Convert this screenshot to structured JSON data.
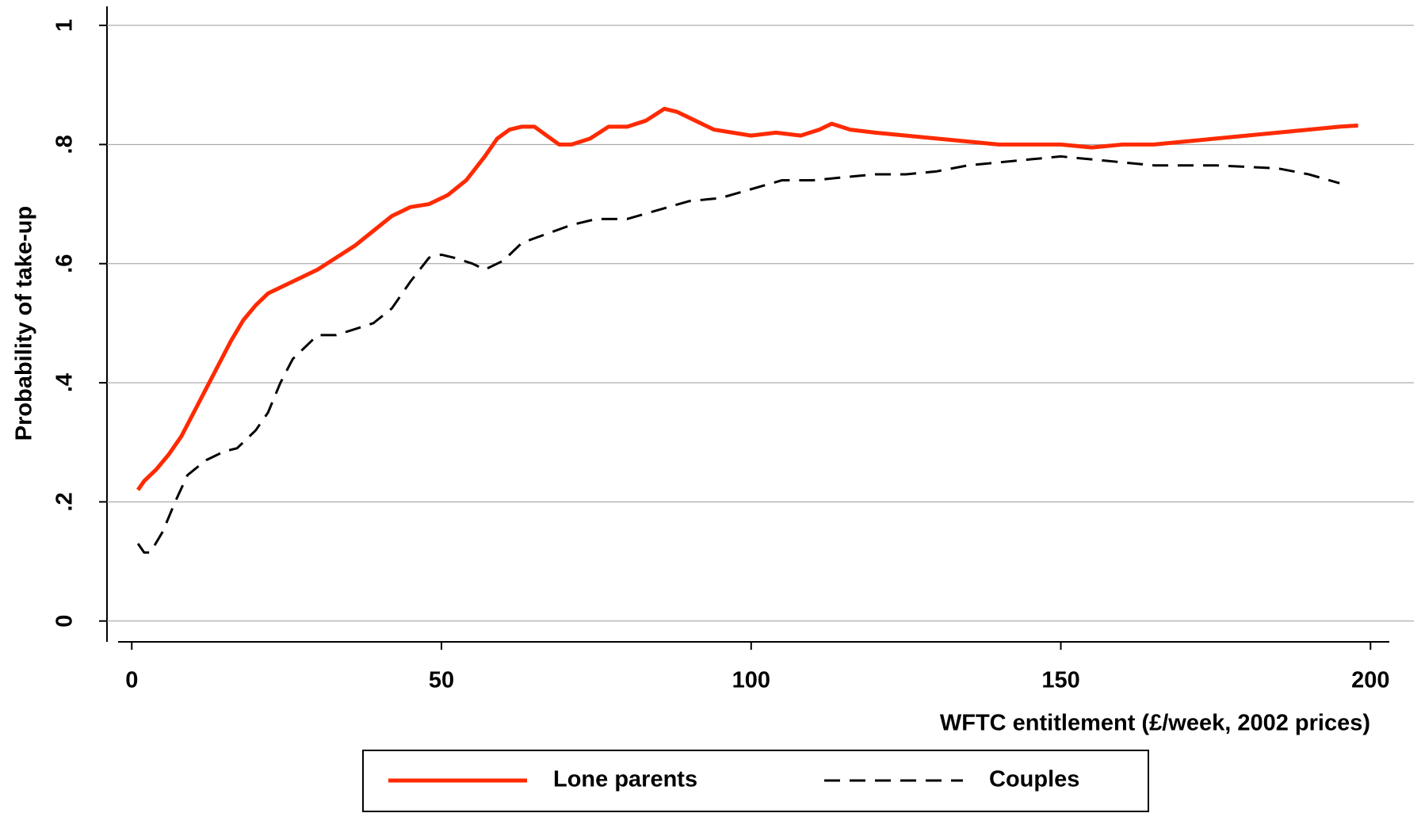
{
  "chart_data": {
    "type": "line",
    "x_label": "WFTC entitlement (£/week, 2002 prices)",
    "y_label": "Probability of take-up",
    "xlim": [
      -4,
      207
    ],
    "ylim": [
      -0.035,
      1.032
    ],
    "xticks": [
      0,
      50,
      100,
      150,
      200
    ],
    "yticks": [
      0,
      {
        "value": 0.2,
        "label": ".2"
      },
      {
        "value": 0.4,
        "label": ".4"
      },
      {
        "value": 0.6,
        "label": ".6"
      },
      {
        "value": 0.8,
        "label": ".8"
      },
      1
    ],
    "grid": true,
    "series": [
      {
        "name": "Lone parents",
        "color": "#ff2a00",
        "dash": "solid",
        "x": [
          1,
          2,
          4,
          6,
          8,
          10,
          12,
          14,
          16,
          18,
          20,
          22,
          25,
          28,
          30,
          33,
          36,
          39,
          42,
          45,
          48,
          51,
          54,
          57,
          59,
          61,
          63,
          65,
          67,
          69,
          71,
          74,
          77,
          80,
          83,
          86,
          88,
          91,
          94,
          97,
          100,
          104,
          108,
          111,
          113,
          116,
          120,
          125,
          130,
          135,
          140,
          145,
          150,
          155,
          160,
          165,
          170,
          175,
          180,
          185,
          190,
          195,
          198
        ],
        "values": [
          0.22,
          0.235,
          0.255,
          0.28,
          0.31,
          0.35,
          0.39,
          0.43,
          0.47,
          0.505,
          0.53,
          0.55,
          0.565,
          0.58,
          0.59,
          0.61,
          0.63,
          0.655,
          0.68,
          0.695,
          0.7,
          0.715,
          0.74,
          0.78,
          0.81,
          0.825,
          0.83,
          0.83,
          0.815,
          0.8,
          0.8,
          0.81,
          0.83,
          0.83,
          0.84,
          0.86,
          0.855,
          0.84,
          0.825,
          0.82,
          0.815,
          0.82,
          0.815,
          0.825,
          0.835,
          0.825,
          0.82,
          0.815,
          0.81,
          0.805,
          0.8,
          0.8,
          0.8,
          0.795,
          0.8,
          0.8,
          0.805,
          0.81,
          0.815,
          0.82,
          0.825,
          0.83,
          0.832
        ]
      },
      {
        "name": "Couples",
        "color": "#000000",
        "dash": "dashed",
        "x": [
          1,
          2,
          3,
          5,
          7,
          9,
          12,
          15,
          17,
          20,
          22,
          24,
          26,
          28,
          30,
          33,
          36,
          39,
          42,
          45,
          48,
          50,
          52,
          55,
          57,
          60,
          63,
          67,
          71,
          75,
          80,
          85,
          90,
          95,
          100,
          105,
          110,
          115,
          120,
          125,
          130,
          135,
          140,
          145,
          150,
          155,
          160,
          165,
          175,
          185,
          190,
          195
        ],
        "values": [
          0.13,
          0.115,
          0.115,
          0.15,
          0.2,
          0.245,
          0.27,
          0.285,
          0.29,
          0.32,
          0.35,
          0.4,
          0.44,
          0.46,
          0.48,
          0.48,
          0.49,
          0.5,
          0.525,
          0.57,
          0.61,
          0.615,
          0.61,
          0.6,
          0.59,
          0.605,
          0.635,
          0.65,
          0.665,
          0.675,
          0.675,
          0.69,
          0.705,
          0.71,
          0.725,
          0.74,
          0.74,
          0.745,
          0.75,
          0.75,
          0.755,
          0.765,
          0.77,
          0.775,
          0.78,
          0.775,
          0.77,
          0.765,
          0.765,
          0.76,
          0.75,
          0.735
        ]
      }
    ]
  }
}
